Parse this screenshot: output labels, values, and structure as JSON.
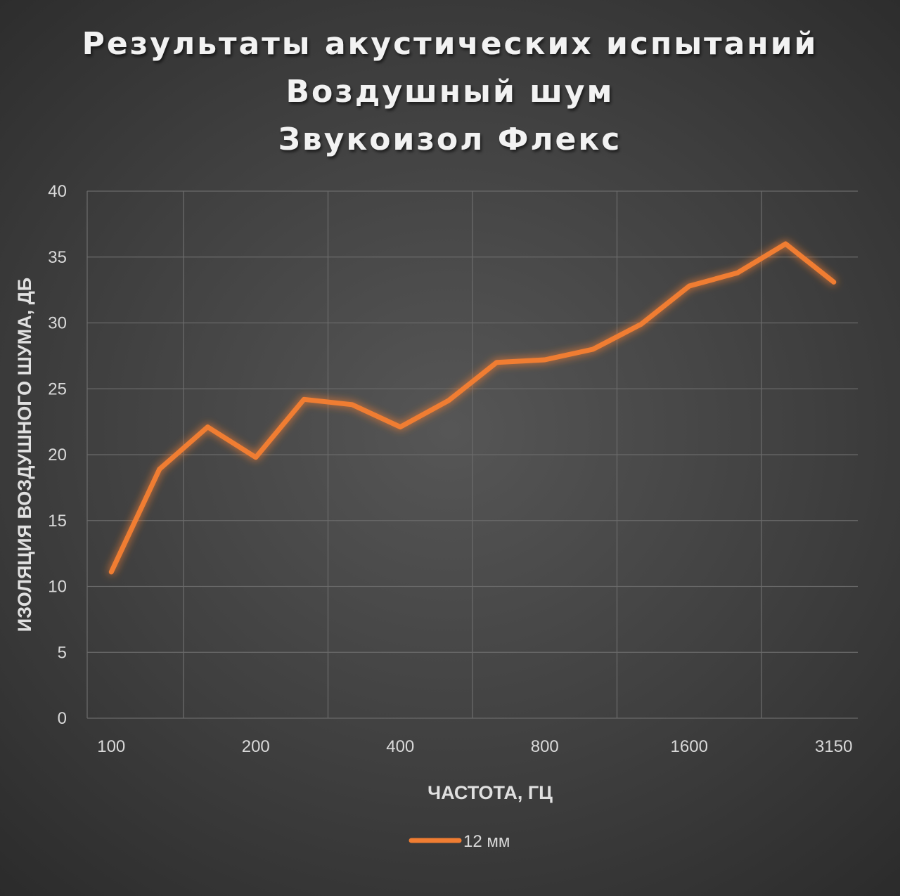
{
  "chart_data": {
    "type": "line",
    "title": [
      "Результаты акустических испытаний",
      "Воздушный шум",
      "Звукоизол Флекс"
    ],
    "xlabel": "ЧАСТОТА, ГЦ",
    "ylabel": "ИЗОЛЯЦИЯ ВОЗДУШНОГО ШУМА, ДБ",
    "x": [
      100,
      125,
      160,
      200,
      250,
      315,
      400,
      500,
      630,
      800,
      1000,
      1250,
      1600,
      2000,
      2500,
      3150
    ],
    "x_tick_labels": [
      "100",
      "200",
      "400",
      "800",
      "1600",
      "3150"
    ],
    "y_ticks": [
      0,
      5,
      10,
      15,
      20,
      25,
      30,
      35,
      40
    ],
    "ylim": [
      0,
      40
    ],
    "grid": true,
    "legend_position": "bottom",
    "series": [
      {
        "name": "12 мм",
        "color": "#f07d32",
        "values": [
          11.1,
          18.9,
          22.1,
          19.8,
          24.2,
          23.8,
          22.1,
          24.1,
          27.0,
          27.2,
          28.0,
          29.9,
          32.8,
          33.8,
          36.0,
          33.1
        ]
      }
    ]
  }
}
